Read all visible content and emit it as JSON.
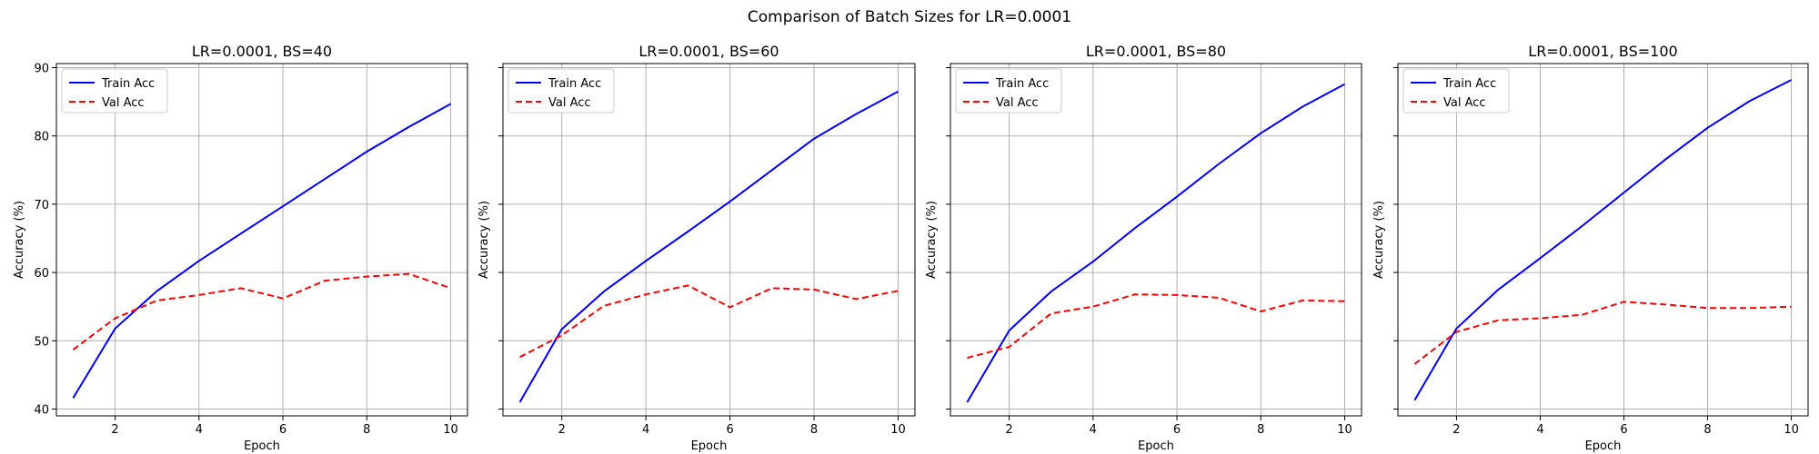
{
  "chart_data": {
    "title": "Comparison of Batch Sizes for LR=0.0001",
    "type": "line",
    "shared_y": true,
    "xlabel": "Epoch",
    "ylabel": "Accuracy (%)",
    "xlim": [
      0.6,
      10.4
    ],
    "ylim": [
      39.0,
      90.6
    ],
    "xticks": [
      2,
      4,
      6,
      8,
      10
    ],
    "yticks": [
      40,
      50,
      60,
      70,
      80,
      90
    ],
    "grid": true,
    "legend_position": "upper-left",
    "x": [
      1,
      2,
      3,
      4,
      5,
      6,
      7,
      8,
      9,
      10
    ],
    "series_styles": [
      {
        "name": "Train Acc",
        "color": "#0000ff",
        "dash": "solid"
      },
      {
        "name": "Val Acc",
        "color": "#ff0000",
        "dash": "dashed"
      }
    ],
    "panels": [
      {
        "title": "LR=0.0001, BS=40",
        "series": [
          {
            "name": "Train Acc",
            "values": [
              41.6,
              51.8,
              57.3,
              61.7,
              65.7,
              69.7,
              73.7,
              77.7,
              81.3,
              84.7
            ]
          },
          {
            "name": "Val Acc",
            "values": [
              48.7,
              53.3,
              55.9,
              56.7,
              57.7,
              56.2,
              58.8,
              59.4,
              59.8,
              57.7
            ]
          }
        ]
      },
      {
        "title": "LR=0.0001, BS=60",
        "series": [
          {
            "name": "Train Acc",
            "values": [
              41.0,
              51.7,
              57.2,
              61.7,
              66.0,
              70.4,
              75.0,
              79.6,
              83.2,
              86.5
            ]
          },
          {
            "name": "Val Acc",
            "values": [
              47.6,
              50.8,
              55.1,
              56.8,
              58.1,
              54.9,
              57.7,
              57.5,
              56.1,
              57.3
            ]
          }
        ]
      },
      {
        "title": "LR=0.0001, BS=80",
        "series": [
          {
            "name": "Train Acc",
            "values": [
              41.0,
              51.5,
              57.2,
              61.6,
              66.5,
              71.1,
              75.9,
              80.4,
              84.3,
              87.6
            ]
          },
          {
            "name": "Val Acc",
            "values": [
              47.5,
              49.1,
              54.0,
              55.0,
              56.8,
              56.7,
              56.3,
              54.3,
              55.9,
              55.8
            ]
          }
        ]
      },
      {
        "title": "LR=0.0001, BS=100",
        "series": [
          {
            "name": "Train Acc",
            "values": [
              41.3,
              51.8,
              57.5,
              62.1,
              66.8,
              71.7,
              76.6,
              81.2,
              85.1,
              88.2
            ]
          },
          {
            "name": "Val Acc",
            "values": [
              46.6,
              51.3,
              53.0,
              53.3,
              53.8,
              55.7,
              55.3,
              54.8,
              54.8,
              55.0
            ]
          }
        ]
      }
    ]
  }
}
